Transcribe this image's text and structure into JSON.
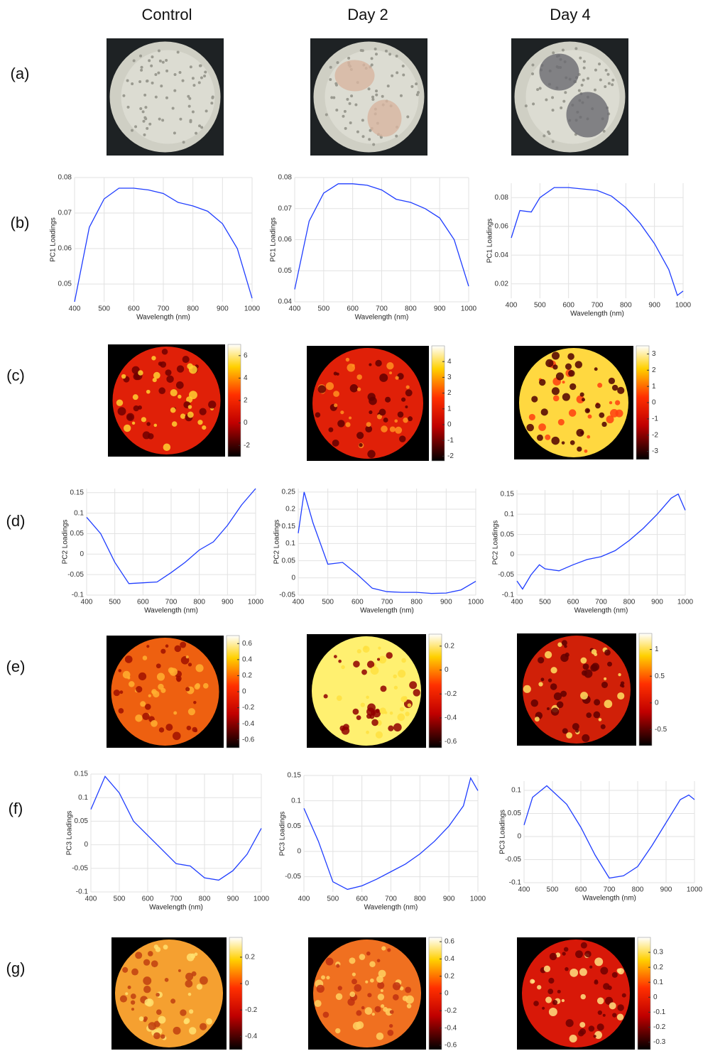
{
  "header": {
    "columns": [
      "Control",
      "Day 2",
      "Day 4"
    ]
  },
  "panels": [
    "(a)",
    "(b)",
    "(c)",
    "(d)",
    "(e)",
    "(f)",
    "(g)"
  ],
  "chart_data": [
    {
      "type": "line",
      "xlabel": "Wavelength (nm)",
      "ylabel": "PC1 Loadings",
      "color": "#1f3dff",
      "grid": true,
      "xlim": [
        400,
        1000
      ],
      "xticks": [
        400,
        500,
        600,
        700,
        800,
        900,
        1000
      ],
      "ylim": [
        0.045,
        0.08
      ],
      "yticks": [
        0.05,
        0.06,
        0.07,
        0.08
      ],
      "x": [
        400,
        450,
        500,
        550,
        600,
        650,
        700,
        750,
        800,
        850,
        900,
        950,
        1000
      ],
      "values": [
        0.045,
        0.066,
        0.074,
        0.077,
        0.077,
        0.0765,
        0.0755,
        0.073,
        0.072,
        0.0705,
        0.067,
        0.06,
        0.046
      ]
    },
    {
      "type": "line",
      "xlabel": "Wavelength (nm)",
      "ylabel": "PC1 Loadings",
      "color": "#1f3dff",
      "grid": true,
      "xlim": [
        400,
        1000
      ],
      "xticks": [
        400,
        500,
        600,
        700,
        800,
        900,
        1000
      ],
      "ylim": [
        0.04,
        0.08
      ],
      "yticks": [
        0.04,
        0.05,
        0.06,
        0.07,
        0.08
      ],
      "x": [
        400,
        450,
        500,
        550,
        600,
        650,
        700,
        750,
        800,
        850,
        900,
        950,
        1000
      ],
      "values": [
        0.044,
        0.066,
        0.075,
        0.078,
        0.078,
        0.0775,
        0.076,
        0.073,
        0.072,
        0.07,
        0.067,
        0.06,
        0.045
      ]
    },
    {
      "type": "line",
      "xlabel": "Wavelength (nm)",
      "ylabel": "PC1 Loadings",
      "color": "#1f3dff",
      "grid": true,
      "xlim": [
        400,
        1000
      ],
      "xticks": [
        400,
        500,
        600,
        700,
        800,
        900,
        1000
      ],
      "ylim": [
        0.01,
        0.09
      ],
      "yticks": [
        0.02,
        0.04,
        0.06,
        0.08
      ],
      "x": [
        400,
        430,
        470,
        500,
        550,
        600,
        650,
        700,
        750,
        800,
        850,
        900,
        950,
        980,
        1000
      ],
      "values": [
        0.052,
        0.071,
        0.07,
        0.08,
        0.087,
        0.087,
        0.086,
        0.085,
        0.081,
        0.073,
        0.062,
        0.048,
        0.03,
        0.012,
        0.015
      ]
    },
    {
      "type": "colorbar",
      "ylim": [
        -3,
        7
      ],
      "yticks": [
        -2,
        0,
        2,
        4,
        6
      ]
    },
    {
      "type": "colorbar",
      "ylim": [
        -2.3,
        5
      ],
      "yticks": [
        -2,
        -1,
        0,
        1,
        2,
        3,
        4
      ]
    },
    {
      "type": "colorbar",
      "ylim": [
        -3.5,
        3.5
      ],
      "yticks": [
        -3,
        -2,
        -1,
        0,
        1,
        2,
        3
      ]
    },
    {
      "type": "line",
      "xlabel": "Wavelength (nm)",
      "ylabel": "PC2 Loadings",
      "color": "#1f3dff",
      "grid": true,
      "xlim": [
        400,
        1000
      ],
      "xticks": [
        400,
        500,
        600,
        700,
        800,
        900,
        1000
      ],
      "ylim": [
        -0.1,
        0.16
      ],
      "yticks": [
        -0.1,
        -0.05,
        0,
        0.05,
        0.1,
        0.15
      ],
      "x": [
        400,
        450,
        500,
        550,
        600,
        650,
        700,
        750,
        800,
        850,
        900,
        950,
        1000
      ],
      "values": [
        0.09,
        0.05,
        -0.02,
        -0.072,
        -0.07,
        -0.068,
        -0.045,
        -0.02,
        0.01,
        0.03,
        0.07,
        0.12,
        0.16
      ]
    },
    {
      "type": "line",
      "xlabel": "Wavelength (nm)",
      "ylabel": "PC2 Loadings",
      "color": "#1f3dff",
      "grid": true,
      "xlim": [
        400,
        1000
      ],
      "xticks": [
        400,
        500,
        600,
        700,
        800,
        900,
        1000
      ],
      "ylim": [
        -0.05,
        0.26
      ],
      "yticks": [
        -0.05,
        0,
        0.05,
        0.1,
        0.15,
        0.2,
        0.25
      ],
      "x": [
        400,
        420,
        450,
        500,
        550,
        600,
        650,
        700,
        750,
        800,
        850,
        900,
        950,
        1000
      ],
      "values": [
        0.13,
        0.25,
        0.16,
        0.04,
        0.045,
        0.01,
        -0.03,
        -0.04,
        -0.042,
        -0.042,
        -0.045,
        -0.044,
        -0.035,
        -0.01
      ]
    },
    {
      "type": "line",
      "xlabel": "Wavelength (nm)",
      "ylabel": "PC2 Loadings",
      "color": "#1f3dff",
      "grid": true,
      "xlim": [
        400,
        1000
      ],
      "xticks": [
        400,
        500,
        600,
        700,
        800,
        900,
        1000
      ],
      "ylim": [
        -0.1,
        0.16
      ],
      "yticks": [
        -0.1,
        -0.05,
        0,
        0.05,
        0.1,
        0.15
      ],
      "x": [
        400,
        420,
        450,
        480,
        500,
        550,
        600,
        650,
        700,
        750,
        800,
        850,
        900,
        950,
        975,
        1000
      ],
      "values": [
        -0.065,
        -0.085,
        -0.05,
        -0.025,
        -0.035,
        -0.04,
        -0.025,
        -0.012,
        -0.005,
        0.01,
        0.035,
        0.065,
        0.1,
        0.14,
        0.15,
        0.11
      ]
    },
    {
      "type": "colorbar",
      "ylim": [
        -0.7,
        0.7
      ],
      "yticks": [
        -0.6,
        -0.4,
        -0.2,
        0,
        0.2,
        0.4,
        0.6
      ]
    },
    {
      "type": "colorbar",
      "ylim": [
        -0.65,
        0.3
      ],
      "yticks": [
        -0.6,
        -0.4,
        -0.2,
        0,
        0.2
      ]
    },
    {
      "type": "colorbar",
      "ylim": [
        -0.8,
        1.3
      ],
      "yticks": [
        -0.5,
        0,
        0.5,
        1
      ]
    },
    {
      "type": "line",
      "xlabel": "Wavelength (nm)",
      "ylabel": "PC3 Loadings",
      "color": "#1f3dff",
      "grid": true,
      "xlim": [
        400,
        1000
      ],
      "xticks": [
        400,
        500,
        600,
        700,
        800,
        900,
        1000
      ],
      "ylim": [
        -0.1,
        0.15
      ],
      "yticks": [
        -0.1,
        -0.05,
        0,
        0.05,
        0.1,
        0.15
      ],
      "x": [
        400,
        450,
        500,
        550,
        600,
        650,
        700,
        750,
        800,
        850,
        900,
        950,
        1000
      ],
      "values": [
        0.075,
        0.145,
        0.11,
        0.05,
        0.02,
        -0.01,
        -0.04,
        -0.045,
        -0.07,
        -0.075,
        -0.055,
        -0.02,
        0.035
      ]
    },
    {
      "type": "line",
      "xlabel": "Wavelength (nm)",
      "ylabel": "PC3 Loadings",
      "color": "#1f3dff",
      "grid": true,
      "xlim": [
        400,
        1000
      ],
      "xticks": [
        400,
        500,
        600,
        700,
        800,
        900,
        1000
      ],
      "ylim": [
        -0.08,
        0.15
      ],
      "yticks": [
        -0.05,
        0,
        0.05,
        0.1,
        0.15
      ],
      "x": [
        400,
        450,
        500,
        550,
        600,
        650,
        700,
        750,
        800,
        850,
        900,
        950,
        975,
        1000
      ],
      "values": [
        0.085,
        0.02,
        -0.06,
        -0.075,
        -0.068,
        -0.055,
        -0.04,
        -0.025,
        -0.005,
        0.02,
        0.05,
        0.09,
        0.145,
        0.12
      ]
    },
    {
      "type": "line",
      "xlabel": "Wavelength (nm)",
      "ylabel": "PC3 Loadings",
      "color": "#1f3dff",
      "grid": true,
      "xlim": [
        400,
        1000
      ],
      "xticks": [
        400,
        500,
        600,
        700,
        800,
        900,
        1000
      ],
      "ylim": [
        -0.1,
        0.12
      ],
      "yticks": [
        -0.1,
        -0.05,
        0,
        0.05,
        0.1
      ],
      "x": [
        400,
        430,
        480,
        550,
        600,
        650,
        700,
        750,
        800,
        850,
        900,
        950,
        980,
        1000
      ],
      "values": [
        0.025,
        0.085,
        0.11,
        0.07,
        0.02,
        -0.04,
        -0.09,
        -0.085,
        -0.065,
        -0.02,
        0.03,
        0.08,
        0.09,
        0.08
      ]
    },
    {
      "type": "colorbar",
      "ylim": [
        -0.5,
        0.35
      ],
      "yticks": [
        -0.4,
        -0.2,
        0,
        0.2
      ]
    },
    {
      "type": "colorbar",
      "ylim": [
        -0.65,
        0.65
      ],
      "yticks": [
        -0.6,
        -0.4,
        -0.2,
        0,
        0.2,
        0.4,
        0.6
      ]
    },
    {
      "type": "colorbar",
      "ylim": [
        -0.35,
        0.4
      ],
      "yticks": [
        -0.3,
        -0.2,
        -0.1,
        0,
        0.1,
        0.2,
        0.3
      ]
    }
  ]
}
